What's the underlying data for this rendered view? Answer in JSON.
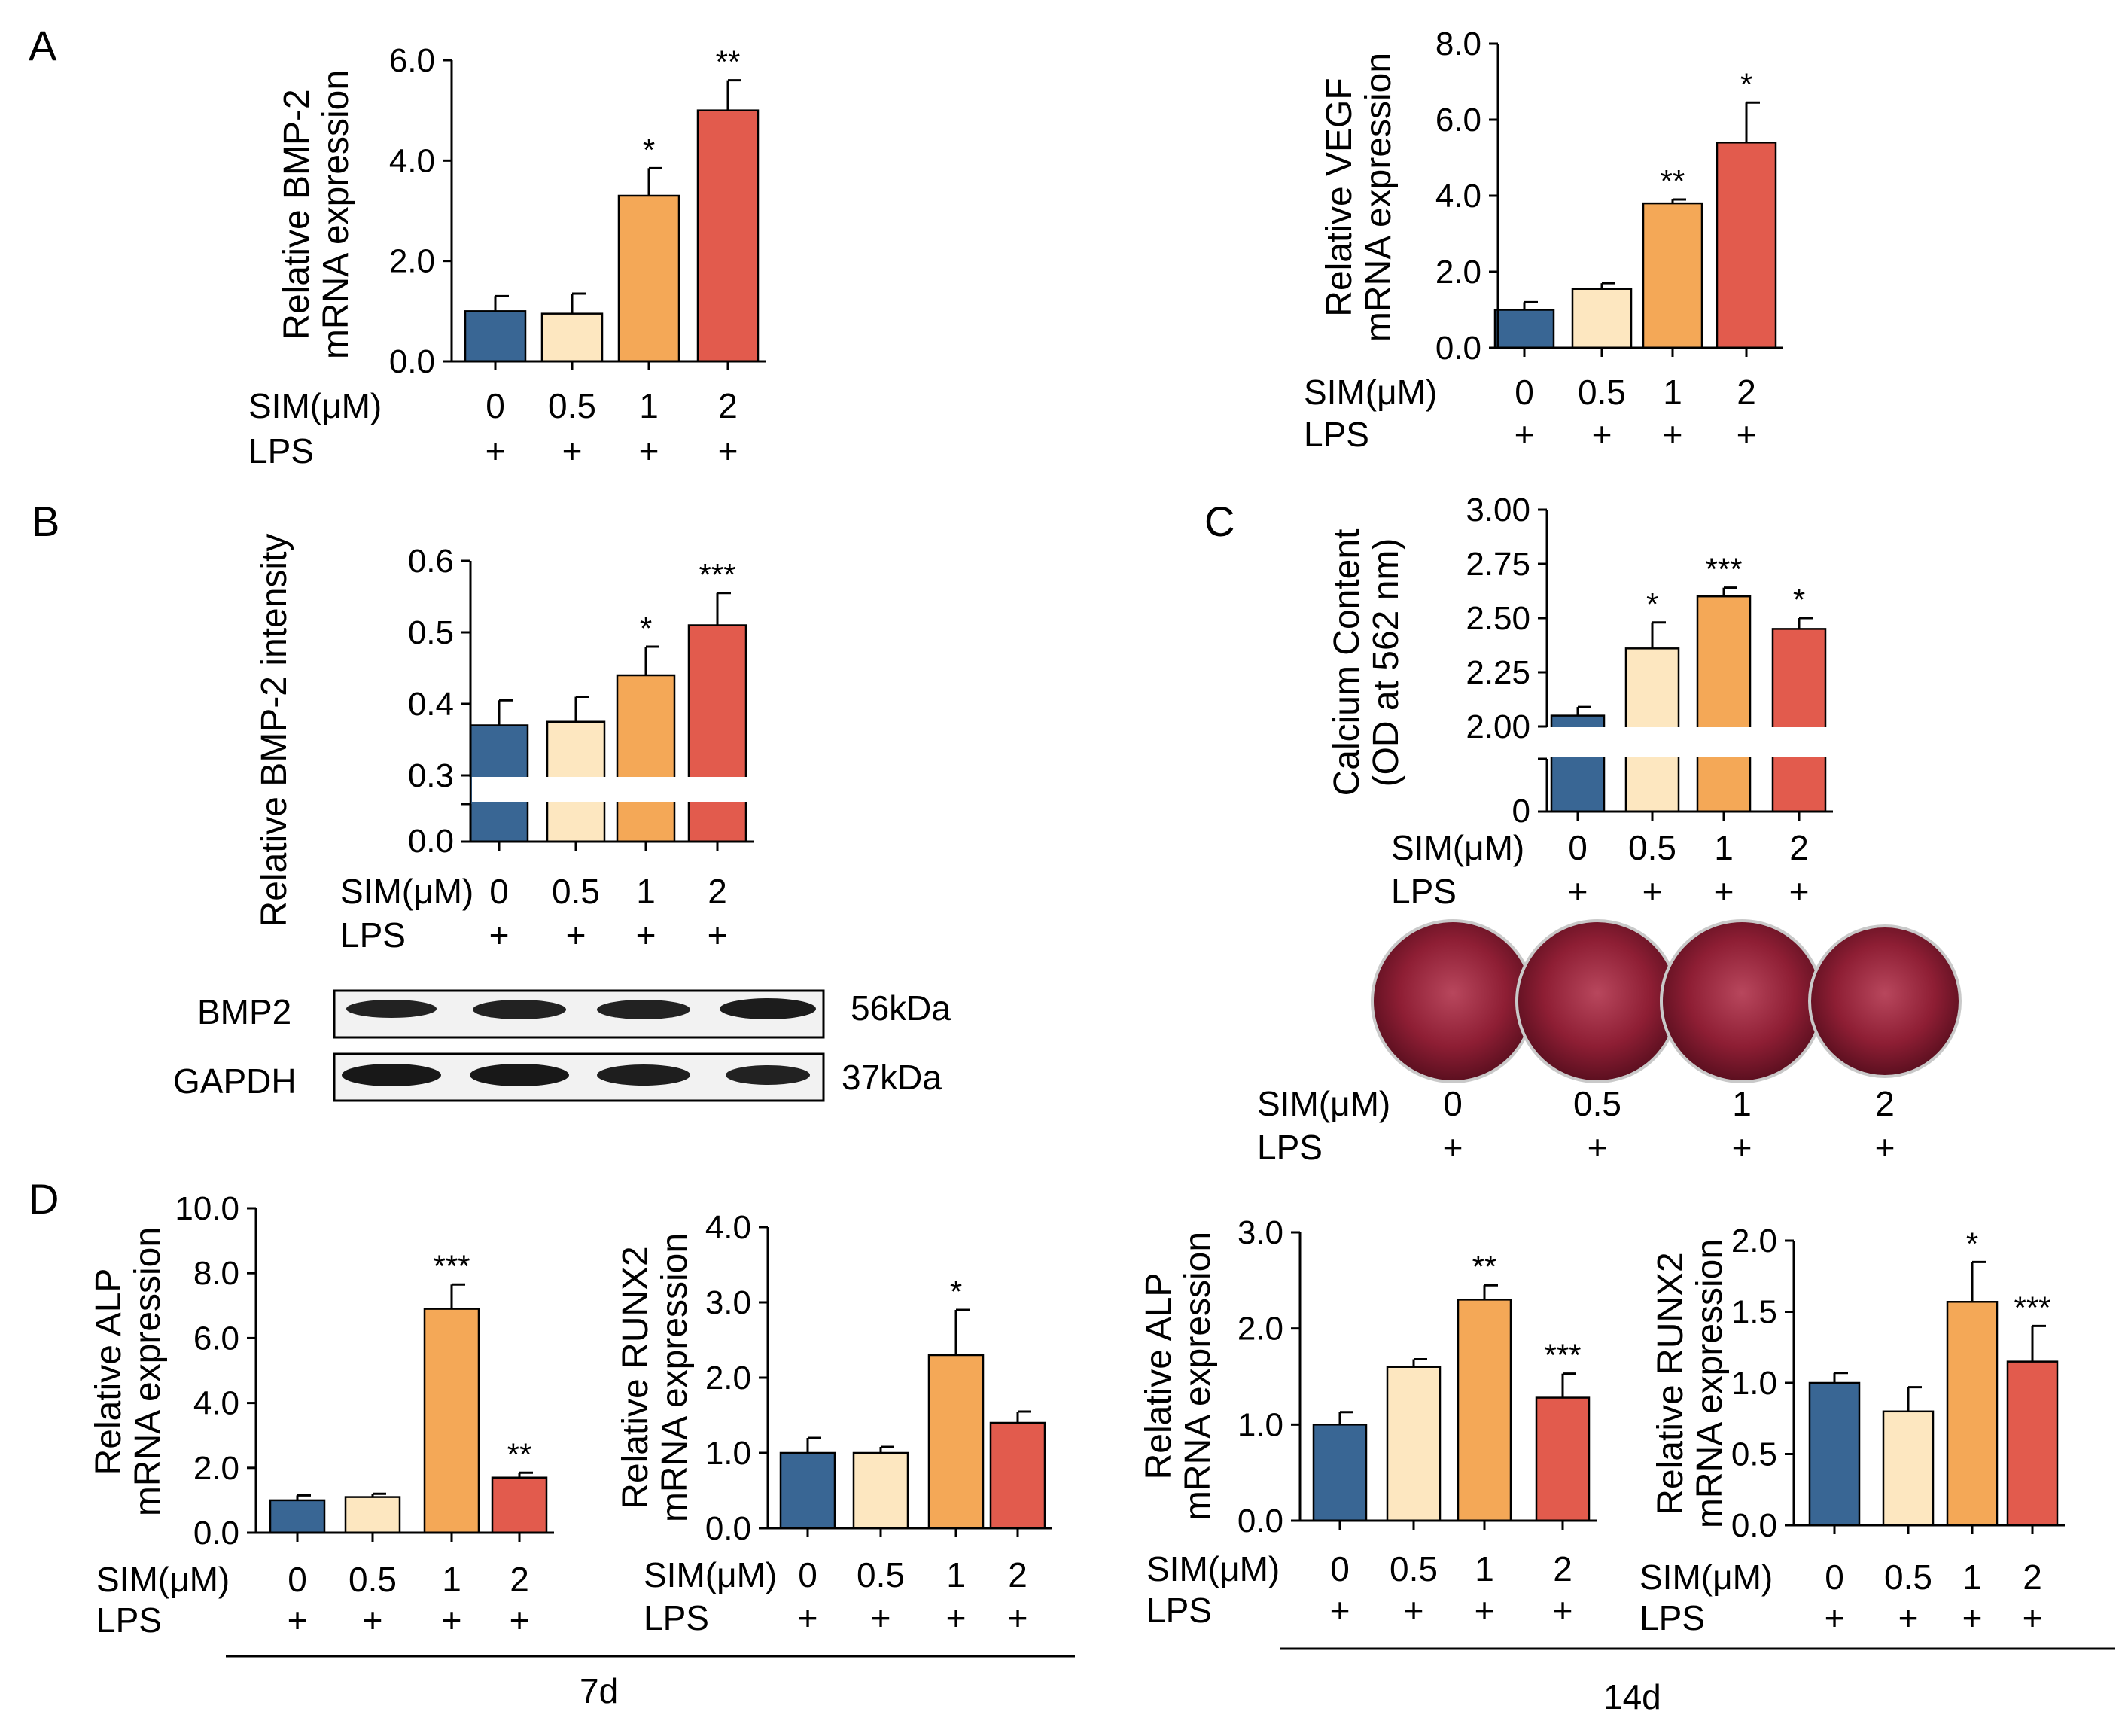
{
  "colors": {
    "c0": "#396694",
    "c05": "#FDE7C0",
    "c1": "#F4A857",
    "c2": "#E25B4D",
    "axis": "#000000",
    "stain": "#8E1E34"
  },
  "labels": {
    "sim": "SIM(μM)",
    "lps": "LPS",
    "plus": "+"
  },
  "panels": {
    "A": "A",
    "B": "B",
    "C": "C",
    "D": "D"
  },
  "western": {
    "bmp2_label": "BMP2",
    "bmp2_kda": "56kDa",
    "gapdh_label": "GAPDH",
    "gapdh_kda": "37kDa"
  },
  "staining": {
    "doses": [
      "0",
      "0.5",
      "1",
      "2"
    ]
  },
  "timepoints": {
    "d7": "7d",
    "d14": "14d"
  },
  "chart_data": [
    {
      "id": "A1",
      "type": "bar",
      "panel": "A",
      "ylabel": [
        "Relative BMP-2",
        "mRNA expression"
      ],
      "categories": [
        "0",
        "0.5",
        "1",
        "2"
      ],
      "values": [
        1.0,
        0.95,
        3.3,
        5.0
      ],
      "errors": [
        0.3,
        0.4,
        0.55,
        0.6
      ],
      "sig": [
        "",
        "",
        "*",
        "**"
      ],
      "ylim": [
        0,
        6
      ],
      "ticks": [
        "0.0",
        "2.0",
        "4.0",
        "6.0"
      ],
      "tick_values": [
        0,
        2,
        4,
        6
      ]
    },
    {
      "id": "A2",
      "type": "bar",
      "panel": "A",
      "ylabel": [
        "Relative VEGF",
        "mRNA expression"
      ],
      "categories": [
        "0",
        "0.5",
        "1",
        "2"
      ],
      "values": [
        1.0,
        1.55,
        3.8,
        5.4
      ],
      "errors": [
        0.2,
        0.15,
        0.1,
        1.05
      ],
      "sig": [
        "",
        "",
        "**",
        "*"
      ],
      "ylim": [
        0,
        8
      ],
      "ticks": [
        "0.0",
        "2.0",
        "4.0",
        "6.0",
        "8.0"
      ],
      "tick_values": [
        0,
        2,
        4,
        6,
        8
      ]
    },
    {
      "id": "B1",
      "type": "bar",
      "panel": "B",
      "broken_axis": true,
      "ylabel": [
        "Relative BMP-2 intensity"
      ],
      "categories": [
        "0",
        "0.5",
        "1",
        "2"
      ],
      "values": [
        0.37,
        0.375,
        0.44,
        0.51
      ],
      "errors": [
        0.035,
        0.035,
        0.04,
        0.045
      ],
      "sig": [
        "",
        "",
        "*",
        "***"
      ],
      "ylim": [
        0.3,
        0.6
      ],
      "ticks": [
        "0.3",
        "0.4",
        "0.5",
        "0.6"
      ],
      "tick_values": [
        0.3,
        0.4,
        0.5,
        0.6
      ],
      "lower_tick": "0.0"
    },
    {
      "id": "C1",
      "type": "bar",
      "panel": "C",
      "broken_axis": true,
      "ylabel": [
        "Calcium Content",
        "(OD at 562 nm)"
      ],
      "categories": [
        "0",
        "0.5",
        "1",
        "2"
      ],
      "values": [
        2.05,
        2.36,
        2.6,
        2.45
      ],
      "errors": [
        0.04,
        0.12,
        0.04,
        0.05
      ],
      "sig": [
        "",
        "*",
        "***",
        "*"
      ],
      "ylim": [
        2.0,
        3.0
      ],
      "ticks": [
        "2.00",
        "2.25",
        "2.50",
        "2.75",
        "3.00"
      ],
      "tick_values": [
        2.0,
        2.25,
        2.5,
        2.75,
        3.0
      ],
      "lower_tick": "0"
    },
    {
      "id": "D1",
      "type": "bar",
      "panel": "D",
      "ylabel": [
        "Relative ALP",
        "mRNA expression"
      ],
      "categories": [
        "0",
        "0.5",
        "1",
        "2"
      ],
      "values": [
        1.0,
        1.1,
        6.9,
        1.7
      ],
      "errors": [
        0.15,
        0.1,
        0.75,
        0.15
      ],
      "sig": [
        "",
        "",
        "***",
        "**"
      ],
      "ylim": [
        0,
        10
      ],
      "ticks": [
        "0.0",
        "2.0",
        "4.0",
        "6.0",
        "8.0",
        "10.0"
      ],
      "tick_values": [
        0,
        2,
        4,
        6,
        8,
        10
      ]
    },
    {
      "id": "D2",
      "type": "bar",
      "panel": "D",
      "ylabel": [
        "Relative RUNX2",
        "mRNA expression"
      ],
      "categories": [
        "0",
        "0.5",
        "1",
        "2"
      ],
      "values": [
        1.0,
        1.0,
        2.3,
        1.4
      ],
      "errors": [
        0.2,
        0.08,
        0.6,
        0.15
      ],
      "sig": [
        "",
        "",
        "*",
        ""
      ],
      "ylim": [
        0,
        4
      ],
      "ticks": [
        "0.0",
        "1.0",
        "2.0",
        "3.0",
        "4.0"
      ],
      "tick_values": [
        0,
        1,
        2,
        3,
        4
      ]
    },
    {
      "id": "D3",
      "type": "bar",
      "panel": "D",
      "ylabel": [
        "Relative ALP",
        "mRNA expression"
      ],
      "categories": [
        "0",
        "0.5",
        "1",
        "2"
      ],
      "values": [
        1.0,
        1.6,
        2.3,
        1.28
      ],
      "errors": [
        0.13,
        0.08,
        0.15,
        0.25
      ],
      "sig": [
        "",
        "",
        "**",
        "***"
      ],
      "ylim": [
        0,
        3
      ],
      "ticks": [
        "0.0",
        "1.0",
        "2.0",
        "3.0"
      ],
      "tick_values": [
        0,
        1,
        2,
        3
      ]
    },
    {
      "id": "D4",
      "type": "bar",
      "panel": "D",
      "ylabel": [
        "Relative RUNX2",
        "mRNA expression"
      ],
      "categories": [
        "0",
        "0.5",
        "1",
        "2"
      ],
      "values": [
        1.0,
        0.8,
        1.57,
        1.15
      ],
      "errors": [
        0.07,
        0.17,
        0.28,
        0.25
      ],
      "sig": [
        "",
        "",
        "*",
        "***"
      ],
      "ylim": [
        0,
        2
      ],
      "ticks": [
        "0.0",
        "0.5",
        "1.0",
        "1.5",
        "2.0"
      ],
      "tick_values": [
        0,
        0.5,
        1,
        1.5,
        2
      ]
    }
  ]
}
